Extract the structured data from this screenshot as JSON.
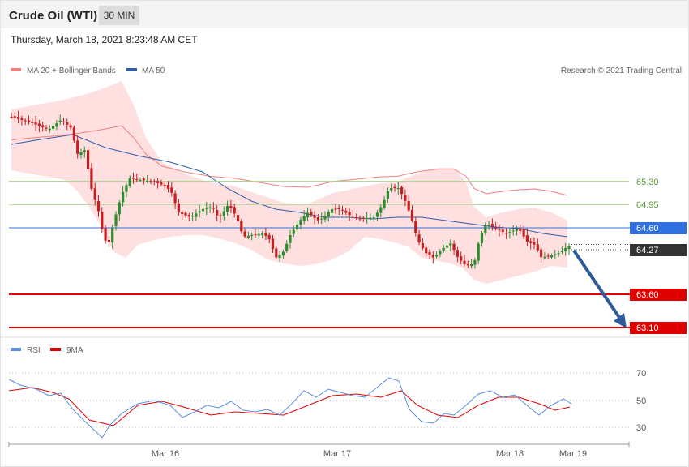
{
  "header": {
    "title": "Crude Oil (WTI)",
    "interval": "30 MIN",
    "timestamp": "Thursday, March 18, 2021 8:23:48 AM CET"
  },
  "legend": {
    "ma20": "MA 20 + Bollinger Bands",
    "ma50": "MA 50",
    "rsi": "RSI",
    "rsi_ma": "9MA",
    "credit": "Research © 2021 Trading Central"
  },
  "colors": {
    "ma20": "#f08080",
    "bands": "#ffd6d6",
    "ma50": "#2e5ea8",
    "bullish": "#2e8b2e",
    "bearish": "#c61e1e",
    "green_level": "#a8d08d",
    "blue_level": "#2f6fe0",
    "red_level": "#e00000",
    "current_price": "#333333",
    "arrow": "#2e5a9a",
    "rsi": "#5a8de0",
    "rsi_ma": "#e00000"
  },
  "chart_data": {
    "type": "candlestick",
    "instrument": "Crude Oil (WTI)",
    "timeframe": "30 MIN",
    "x_ticks": [
      "Mar 16",
      "Mar 17",
      "Mar 18",
      "Mar 19"
    ],
    "levels": [
      {
        "value": "65.30",
        "kind": "resistance"
      },
      {
        "value": "64.95",
        "kind": "resistance"
      },
      {
        "value": "64.60",
        "kind": "pivot"
      },
      {
        "value": "64.27",
        "kind": "current"
      },
      {
        "value": "63.60",
        "kind": "support"
      },
      {
        "value": "63.10",
        "kind": "support"
      }
    ],
    "projection": {
      "from": 64.27,
      "to": 63.1,
      "direction": "down"
    },
    "rsi": {
      "ticks": [
        "70",
        "50",
        "30"
      ]
    }
  }
}
